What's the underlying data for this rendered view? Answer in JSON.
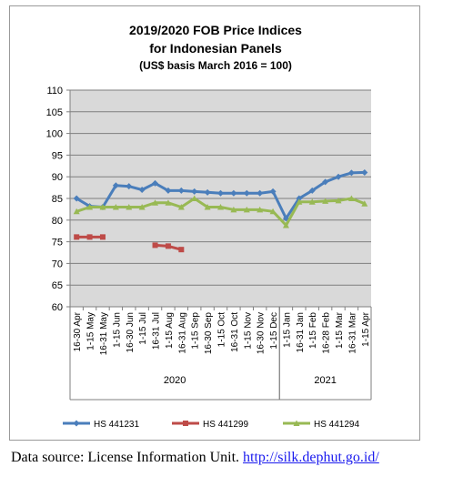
{
  "chart_data": {
    "type": "line",
    "title": "2019/2020 FOB Price Indices",
    "subtitle": "for Indonesian Panels",
    "note": "(US$ basis March 2016 = 100)",
    "ylim": [
      60,
      110
    ],
    "yticks": [
      60,
      65,
      70,
      75,
      80,
      85,
      90,
      95,
      100,
      105,
      110
    ],
    "grid": true,
    "legend_position": "bottom",
    "categories": [
      "16-30 Apr",
      "1-15 May",
      "16-31 May",
      "1-15 Jun",
      "16-30 Jun",
      "1-15 Jul",
      "16-31 Jul",
      "1-15 Aug",
      "16-31 Aug",
      "1-15 Sep",
      "16-30 Sep",
      "1-15 Oct",
      "16-31 Oct",
      "1-15 Nov",
      "16-30 Nov",
      "1-15 Dec",
      "1-15 Jan",
      "16-31 Jan",
      "1-15 Feb",
      "16-28 Feb",
      "1-15 Mar",
      "16-31 Mar",
      "1-15 Apr"
    ],
    "year_groups": [
      {
        "label": "2020",
        "start": 0,
        "end": 15
      },
      {
        "label": "2021",
        "start": 16,
        "end": 22
      }
    ],
    "series": [
      {
        "name": "HS 441231",
        "color": "#4a7ebb",
        "values": [
          85,
          83.2,
          83,
          88,
          87.8,
          87,
          88.5,
          86.8,
          86.8,
          86.6,
          86.4,
          86.2,
          86.2,
          86.2,
          86.2,
          86.6,
          80.4,
          85,
          86.8,
          88.8,
          90,
          90.9,
          91
        ]
      },
      {
        "name": "HS 441299",
        "color": "#be4b48",
        "values": [
          76.1,
          76.1,
          76.1,
          null,
          null,
          null,
          74.2,
          74,
          73.2,
          null,
          null,
          null,
          null,
          null,
          null,
          null,
          null,
          null,
          null,
          null,
          null,
          null,
          null
        ]
      },
      {
        "name": "HS 441294",
        "color": "#98b954",
        "values": [
          82,
          83,
          83,
          83,
          83,
          83,
          84,
          84,
          83,
          85,
          83,
          83,
          82.4,
          82.4,
          82.4,
          82,
          78.8,
          84.2,
          84.2,
          84.4,
          84.5,
          85,
          83.8
        ]
      }
    ]
  },
  "source": {
    "text": "Data source: License Information Unit.",
    "link": "http://silk.dephut.go.id/"
  }
}
